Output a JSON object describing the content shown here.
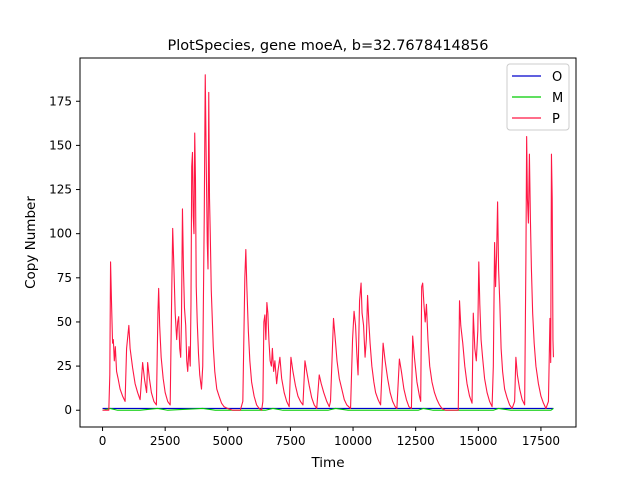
{
  "chart_data": {
    "type": "line",
    "title": "PlotSpecies, gene moeA, b=32.7678414856",
    "xlabel": "Time",
    "ylabel": "Copy Number",
    "xlim": [
      -900,
      18900
    ],
    "ylim": [
      -9.5,
      199.5
    ],
    "xticks": [
      0,
      2500,
      5000,
      7500,
      10000,
      12500,
      15000,
      17500
    ],
    "yticks": [
      0,
      25,
      50,
      75,
      100,
      125,
      150,
      175
    ],
    "grid": false,
    "legend_position": "top-right",
    "series": [
      {
        "name": "O",
        "color": "#0000cc",
        "points": [
          [
            0,
            1
          ],
          [
            18000,
            1
          ]
        ]
      },
      {
        "name": "M",
        "color": "#00cc00",
        "points": [
          [
            0,
            0
          ],
          [
            300,
            1
          ],
          [
            600,
            0
          ],
          [
            1500,
            0
          ],
          [
            2200,
            1
          ],
          [
            2600,
            0
          ],
          [
            4000,
            1
          ],
          [
            4500,
            0
          ],
          [
            6500,
            0
          ],
          [
            6800,
            1
          ],
          [
            7200,
            0
          ],
          [
            9000,
            0
          ],
          [
            9300,
            1
          ],
          [
            9800,
            0
          ],
          [
            12600,
            0
          ],
          [
            12800,
            1
          ],
          [
            13200,
            0
          ],
          [
            15600,
            0
          ],
          [
            15800,
            1
          ],
          [
            16300,
            0
          ],
          [
            17900,
            0
          ],
          [
            18000,
            1
          ]
        ]
      },
      {
        "name": "P",
        "color": "#ff1744",
        "points": [
          [
            0,
            0
          ],
          [
            250,
            0
          ],
          [
            290,
            20
          ],
          [
            320,
            84
          ],
          [
            360,
            60
          ],
          [
            400,
            38
          ],
          [
            430,
            40
          ],
          [
            470,
            28
          ],
          [
            510,
            36
          ],
          [
            560,
            22
          ],
          [
            620,
            18
          ],
          [
            700,
            12
          ],
          [
            800,
            8
          ],
          [
            900,
            5
          ],
          [
            960,
            35
          ],
          [
            1050,
            48
          ],
          [
            1100,
            35
          ],
          [
            1200,
            24
          ],
          [
            1300,
            15
          ],
          [
            1400,
            10
          ],
          [
            1500,
            6
          ],
          [
            1600,
            27
          ],
          [
            1680,
            17
          ],
          [
            1760,
            10
          ],
          [
            1800,
            27
          ],
          [
            1870,
            18
          ],
          [
            1950,
            10
          ],
          [
            2050,
            5
          ],
          [
            2150,
            3
          ],
          [
            2210,
            55
          ],
          [
            2240,
            69
          ],
          [
            2280,
            48
          ],
          [
            2340,
            30
          ],
          [
            2420,
            18
          ],
          [
            2500,
            10
          ],
          [
            2600,
            5
          ],
          [
            2700,
            3
          ],
          [
            2760,
            65
          ],
          [
            2800,
            103
          ],
          [
            2850,
            80
          ],
          [
            2900,
            55
          ],
          [
            2960,
            40
          ],
          [
            3000,
            50
          ],
          [
            3040,
            53
          ],
          [
            3080,
            35
          ],
          [
            3120,
            30
          ],
          [
            3150,
            50
          ],
          [
            3190,
            114
          ],
          [
            3230,
            80
          ],
          [
            3270,
            58
          ],
          [
            3320,
            48
          ],
          [
            3360,
            28
          ],
          [
            3400,
            22
          ],
          [
            3450,
            36
          ],
          [
            3500,
            25
          ],
          [
            3530,
            60
          ],
          [
            3560,
            138
          ],
          [
            3590,
            146
          ],
          [
            3620,
            110
          ],
          [
            3650,
            100
          ],
          [
            3680,
            157
          ],
          [
            3710,
            130
          ],
          [
            3740,
            70
          ],
          [
            3780,
            50
          ],
          [
            3830,
            32
          ],
          [
            3880,
            20
          ],
          [
            3950,
            12
          ],
          [
            4000,
            25
          ],
          [
            4060,
            110
          ],
          [
            4100,
            190
          ],
          [
            4140,
            140
          ],
          [
            4180,
            95
          ],
          [
            4210,
            80
          ],
          [
            4240,
            180
          ],
          [
            4270,
            120
          ],
          [
            4300,
            100
          ],
          [
            4340,
            68
          ],
          [
            4380,
            52
          ],
          [
            4420,
            36
          ],
          [
            4480,
            22
          ],
          [
            4560,
            12
          ],
          [
            4650,
            8
          ],
          [
            4750,
            4
          ],
          [
            4850,
            2
          ],
          [
            5000,
            1
          ],
          [
            5200,
            0
          ],
          [
            5500,
            0
          ],
          [
            5600,
            5
          ],
          [
            5680,
            75
          ],
          [
            5720,
            91
          ],
          [
            5760,
            70
          ],
          [
            5820,
            45
          ],
          [
            5880,
            28
          ],
          [
            5950,
            16
          ],
          [
            6050,
            8
          ],
          [
            6150,
            3
          ],
          [
            6250,
            1
          ],
          [
            6350,
            0
          ],
          [
            6400,
            5
          ],
          [
            6440,
            50
          ],
          [
            6480,
            54
          ],
          [
            6520,
            40
          ],
          [
            6560,
            61
          ],
          [
            6600,
            55
          ],
          [
            6640,
            40
          ],
          [
            6690,
            28
          ],
          [
            6740,
            25
          ],
          [
            6780,
            35
          ],
          [
            6830,
            22
          ],
          [
            6880,
            28
          ],
          [
            6950,
            15
          ],
          [
            7000,
            22
          ],
          [
            7080,
            30
          ],
          [
            7150,
            18
          ],
          [
            7250,
            10
          ],
          [
            7350,
            5
          ],
          [
            7450,
            2
          ],
          [
            7520,
            30
          ],
          [
            7600,
            22
          ],
          [
            7700,
            14
          ],
          [
            7800,
            8
          ],
          [
            7900,
            5
          ],
          [
            8000,
            3
          ],
          [
            8080,
            28
          ],
          [
            8150,
            22
          ],
          [
            8250,
            14
          ],
          [
            8350,
            7
          ],
          [
            8450,
            3
          ],
          [
            8550,
            1
          ],
          [
            8650,
            20
          ],
          [
            8730,
            15
          ],
          [
            8830,
            10
          ],
          [
            8950,
            5
          ],
          [
            9050,
            2
          ],
          [
            9100,
            5
          ],
          [
            9220,
            52
          ],
          [
            9280,
            42
          ],
          [
            9360,
            28
          ],
          [
            9450,
            18
          ],
          [
            9550,
            12
          ],
          [
            9650,
            6
          ],
          [
            9750,
            3
          ],
          [
            9900,
            1
          ],
          [
            9980,
            40
          ],
          [
            10040,
            56
          ],
          [
            10100,
            48
          ],
          [
            10150,
            32
          ],
          [
            10200,
            20
          ],
          [
            10260,
            62
          ],
          [
            10320,
            72
          ],
          [
            10360,
            55
          ],
          [
            10420,
            48
          ],
          [
            10480,
            30
          ],
          [
            10530,
            40
          ],
          [
            10580,
            65
          ],
          [
            10630,
            50
          ],
          [
            10680,
            38
          ],
          [
            10750,
            25
          ],
          [
            10830,
            16
          ],
          [
            10900,
            10
          ],
          [
            11000,
            6
          ],
          [
            11100,
            3
          ],
          [
            11200,
            38
          ],
          [
            11280,
            28
          ],
          [
            11380,
            18
          ],
          [
            11480,
            10
          ],
          [
            11580,
            5
          ],
          [
            11680,
            2
          ],
          [
            11750,
            1
          ],
          [
            11850,
            29
          ],
          [
            11930,
            22
          ],
          [
            12030,
            12
          ],
          [
            12130,
            6
          ],
          [
            12230,
            2
          ],
          [
            12330,
            1
          ],
          [
            12380,
            42
          ],
          [
            12450,
            30
          ],
          [
            12550,
            16
          ],
          [
            12650,
            8
          ],
          [
            12700,
            5
          ],
          [
            12740,
            70
          ],
          [
            12780,
            72
          ],
          [
            12830,
            60
          ],
          [
            12880,
            50
          ],
          [
            12930,
            60
          ],
          [
            12990,
            40
          ],
          [
            13060,
            25
          ],
          [
            13150,
            16
          ],
          [
            13250,
            10
          ],
          [
            13350,
            6
          ],
          [
            13450,
            3
          ],
          [
            13550,
            1
          ],
          [
            13700,
            0
          ],
          [
            14200,
            0
          ],
          [
            14250,
            62
          ],
          [
            14300,
            48
          ],
          [
            14380,
            38
          ],
          [
            14460,
            25
          ],
          [
            14550,
            15
          ],
          [
            14650,
            8
          ],
          [
            14750,
            4
          ],
          [
            14800,
            55
          ],
          [
            14860,
            35
          ],
          [
            14920,
            28
          ],
          [
            14980,
            45
          ],
          [
            15020,
            84
          ],
          [
            15060,
            60
          ],
          [
            15110,
            40
          ],
          [
            15170,
            30
          ],
          [
            15250,
            18
          ],
          [
            15350,
            10
          ],
          [
            15450,
            5
          ],
          [
            15550,
            2
          ],
          [
            15600,
            25
          ],
          [
            15650,
            95
          ],
          [
            15690,
            70
          ],
          [
            15730,
            88
          ],
          [
            15770,
            118
          ],
          [
            15810,
            80
          ],
          [
            15860,
            60
          ],
          [
            15910,
            35
          ],
          [
            15970,
            22
          ],
          [
            16050,
            12
          ],
          [
            16150,
            7
          ],
          [
            16250,
            3
          ],
          [
            16350,
            1
          ],
          [
            16450,
            5
          ],
          [
            16500,
            30
          ],
          [
            16560,
            20
          ],
          [
            16650,
            12
          ],
          [
            16750,
            6
          ],
          [
            16850,
            3
          ],
          [
            16900,
            85
          ],
          [
            16930,
            155
          ],
          [
            16960,
            120
          ],
          [
            17000,
            106
          ],
          [
            17040,
            145
          ],
          [
            17080,
            108
          ],
          [
            17120,
            80
          ],
          [
            17170,
            55
          ],
          [
            17230,
            38
          ],
          [
            17300,
            25
          ],
          [
            17400,
            15
          ],
          [
            17500,
            8
          ],
          [
            17600,
            4
          ],
          [
            17700,
            1
          ],
          [
            17800,
            5
          ],
          [
            17860,
            52
          ],
          [
            17890,
            27
          ],
          [
            17920,
            145
          ],
          [
            17950,
            120
          ],
          [
            17980,
            40
          ],
          [
            18000,
            30
          ]
        ]
      }
    ]
  }
}
